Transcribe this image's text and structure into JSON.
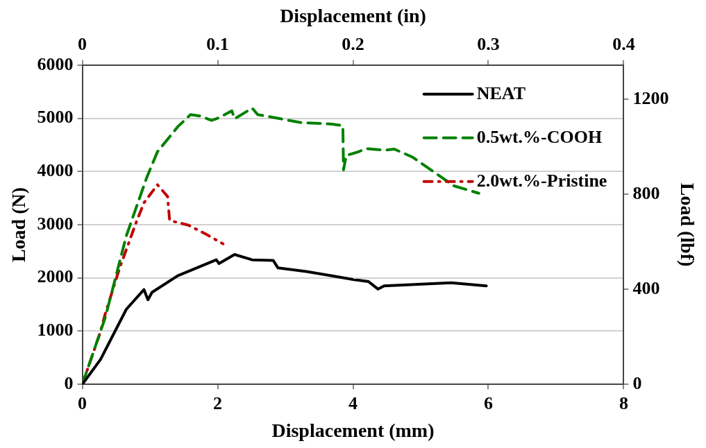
{
  "chart_data": {
    "type": "line",
    "xlabel": "Displacement (mm)",
    "x2label": "Displacement (in)",
    "ylabel": "Load (N)",
    "y2label": "Load (lbf)",
    "xlim": [
      0,
      8
    ],
    "xticks": [
      0,
      2,
      4,
      6,
      8
    ],
    "x2lim": [
      0,
      0.4
    ],
    "x2ticks": [
      0,
      0.1,
      0.2,
      0.3,
      0.4
    ],
    "ylim": [
      0,
      6000
    ],
    "yticks": [
      0,
      1000,
      2000,
      3000,
      4000,
      5000,
      6000
    ],
    "y2lim": [
      0,
      1345
    ],
    "y2ticks": [
      0,
      400,
      800,
      1200
    ],
    "grid": "y",
    "legend": "top right",
    "marker": "none",
    "series": [
      {
        "name": "NEAT",
        "color": "#000000",
        "line_style": "solid",
        "x": [
          0,
          0.27,
          0.65,
          0.91,
          0.97,
          1.03,
          1.41,
          1.98,
          2.02,
          2.25,
          2.51,
          2.82,
          2.89,
          3.31,
          3.69,
          4.0,
          4.23,
          4.37,
          4.46,
          5.45,
          5.97
        ],
        "values": [
          0,
          470,
          1410,
          1780,
          1590,
          1730,
          2040,
          2340,
          2270,
          2440,
          2340,
          2330,
          2190,
          2120,
          2040,
          1970,
          1930,
          1790,
          1850,
          1910,
          1850
        ]
      },
      {
        "name": "0.5wt.%-COOH",
        "color": "#008000",
        "line_style": "dashed",
        "x": [
          0,
          0.34,
          0.65,
          0.95,
          1.11,
          1.41,
          1.6,
          1.75,
          1.91,
          2.02,
          2.21,
          2.25,
          2.51,
          2.59,
          2.93,
          3.23,
          3.69,
          3.85,
          3.86,
          3.9,
          4.08,
          4.19,
          4.46,
          4.61,
          4.88,
          5.22,
          5.49,
          5.86
        ],
        "values": [
          0,
          1260,
          2790,
          3880,
          4370,
          4840,
          5070,
          5040,
          4960,
          5010,
          5140,
          4990,
          5190,
          5070,
          4990,
          4920,
          4890,
          4860,
          4030,
          4300,
          4370,
          4430,
          4400,
          4420,
          4270,
          3970,
          3730,
          3590
        ]
      },
      {
        "name": "2.0wt.%-Pristine",
        "color": "#c00000",
        "line_style": "dotted",
        "x": [
          0,
          0.25,
          0.34,
          0.55,
          0.78,
          0.91,
          1.11,
          1.26,
          1.29,
          1.57,
          1.83,
          2.08
        ],
        "values": [
          0,
          920,
          1330,
          2180,
          2990,
          3410,
          3750,
          3530,
          3080,
          2990,
          2820,
          2640
        ]
      }
    ]
  }
}
